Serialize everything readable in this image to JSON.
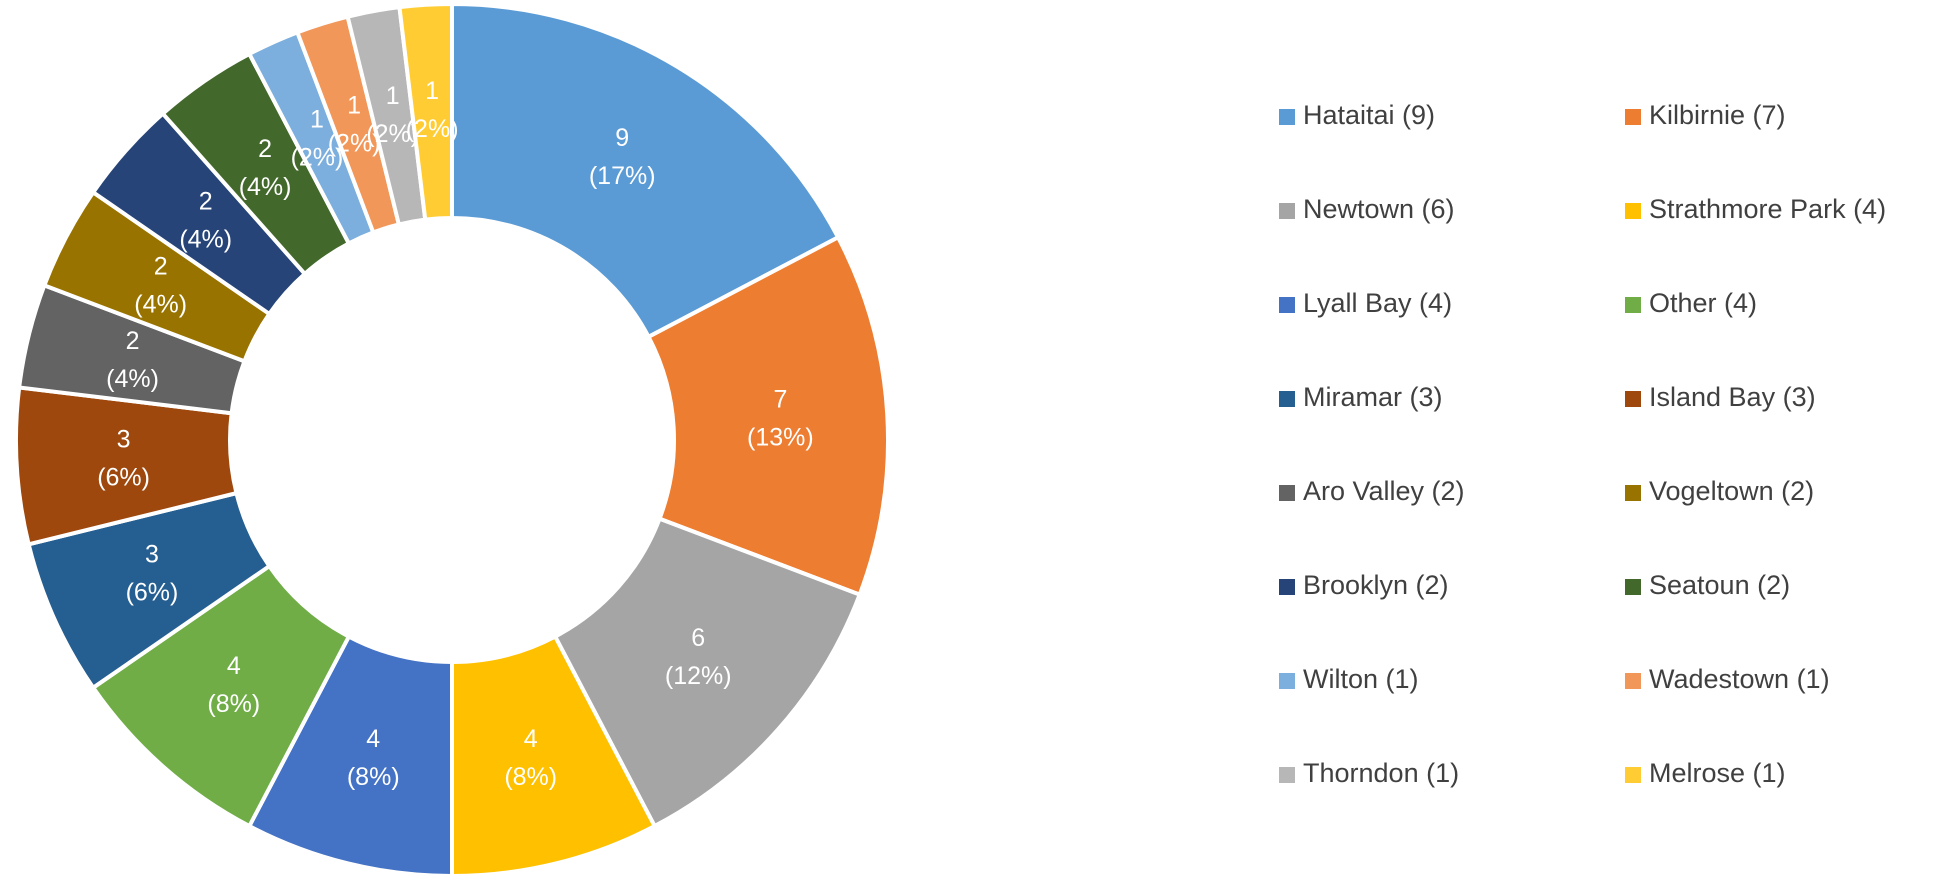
{
  "chart_data": {
    "type": "donut",
    "categories": [
      "Hataitai (9)",
      "Kilbirnie (7)",
      "Newtown (6)",
      "Strathmore Park (4)",
      "Lyall Bay (4)",
      "Other (4)",
      "Miramar (3)",
      "Island Bay (3)",
      "Aro Valley (2)",
      "Vogeltown (2)",
      "Brooklyn (2)",
      "Seatoun (2)",
      "Wilton (1)",
      "Wadestown (1)",
      "Thorndon (1)",
      "Melrose (1)"
    ],
    "values": [
      9,
      7,
      6,
      4,
      4,
      4,
      3,
      3,
      2,
      2,
      2,
      2,
      1,
      1,
      1,
      1
    ],
    "percent_labels": [
      "(17%)",
      "(13%)",
      "(12%)",
      "(8%)",
      "(8%)",
      "(8%)",
      "(6%)",
      "(6%)",
      "(4%)",
      "(4%)",
      "(4%)",
      "(4%)",
      "(2%)",
      "(2%)",
      "(2%)",
      "(2%)"
    ],
    "colors": [
      "#5B9BD5",
      "#ED7D31",
      "#A5A5A5",
      "#FFC000",
      "#4472C4",
      "#70AD47",
      "#255E91",
      "#9E480E",
      "#636363",
      "#997300",
      "#264478",
      "#43682B",
      "#7CAFDD",
      "#F1975A",
      "#B7B7B7",
      "#FFCD33"
    ],
    "legend": "right"
  }
}
